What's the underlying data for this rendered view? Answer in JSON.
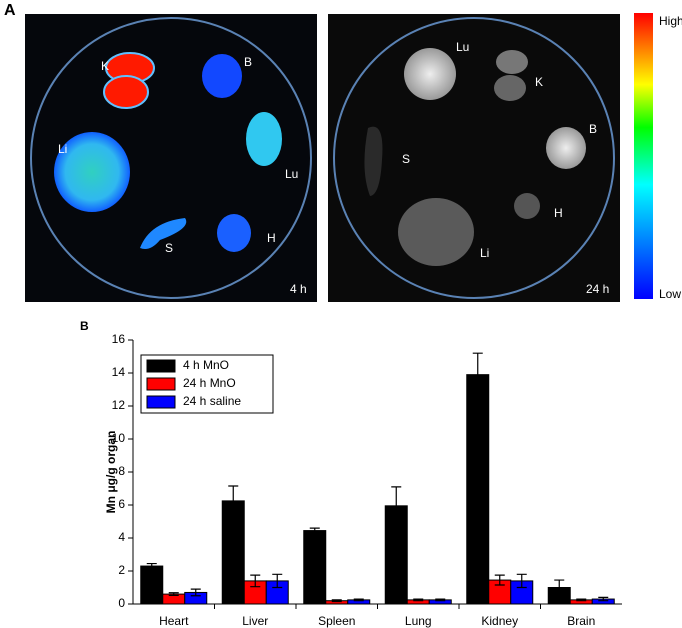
{
  "panel_a": {
    "label": "A",
    "left": {
      "labels": [
        "K",
        "B",
        "Li",
        "Lu",
        "S",
        "H"
      ],
      "time": "4 h"
    },
    "right": {
      "labels": [
        "Lu",
        "K",
        "B",
        "S",
        "H",
        "Li"
      ],
      "time": "24 h"
    },
    "colorbar": {
      "high": "High",
      "low": "Low"
    }
  },
  "chart_data": {
    "type": "bar",
    "panel_label": "B",
    "y_label": "Mn μg/g organ",
    "categories": [
      "Heart",
      "Liver",
      "Spleen",
      "Lung",
      "Kidney",
      "Brain"
    ],
    "series": [
      {
        "name": "4 h MnO",
        "color": "#000000",
        "values": [
          2.3,
          6.25,
          4.45,
          5.95,
          13.9,
          1.0
        ],
        "errors": [
          0.15,
          0.9,
          0.15,
          1.15,
          1.3,
          0.45
        ]
      },
      {
        "name": "24 h MnO",
        "color": "#ff0000",
        "values": [
          0.6,
          1.4,
          0.2,
          0.25,
          1.45,
          0.25
        ],
        "errors": [
          0.08,
          0.35,
          0.05,
          0.05,
          0.3,
          0.05
        ]
      },
      {
        "name": "24 h saline",
        "color": "#0000ff",
        "values": [
          0.7,
          1.4,
          0.25,
          0.25,
          1.4,
          0.3
        ],
        "errors": [
          0.2,
          0.4,
          0.05,
          0.05,
          0.4,
          0.1
        ]
      }
    ],
    "ylim": [
      0,
      16
    ],
    "yticks": [
      0,
      2,
      4,
      6,
      8,
      10,
      12,
      14,
      16
    ],
    "legend": "upper-left"
  }
}
